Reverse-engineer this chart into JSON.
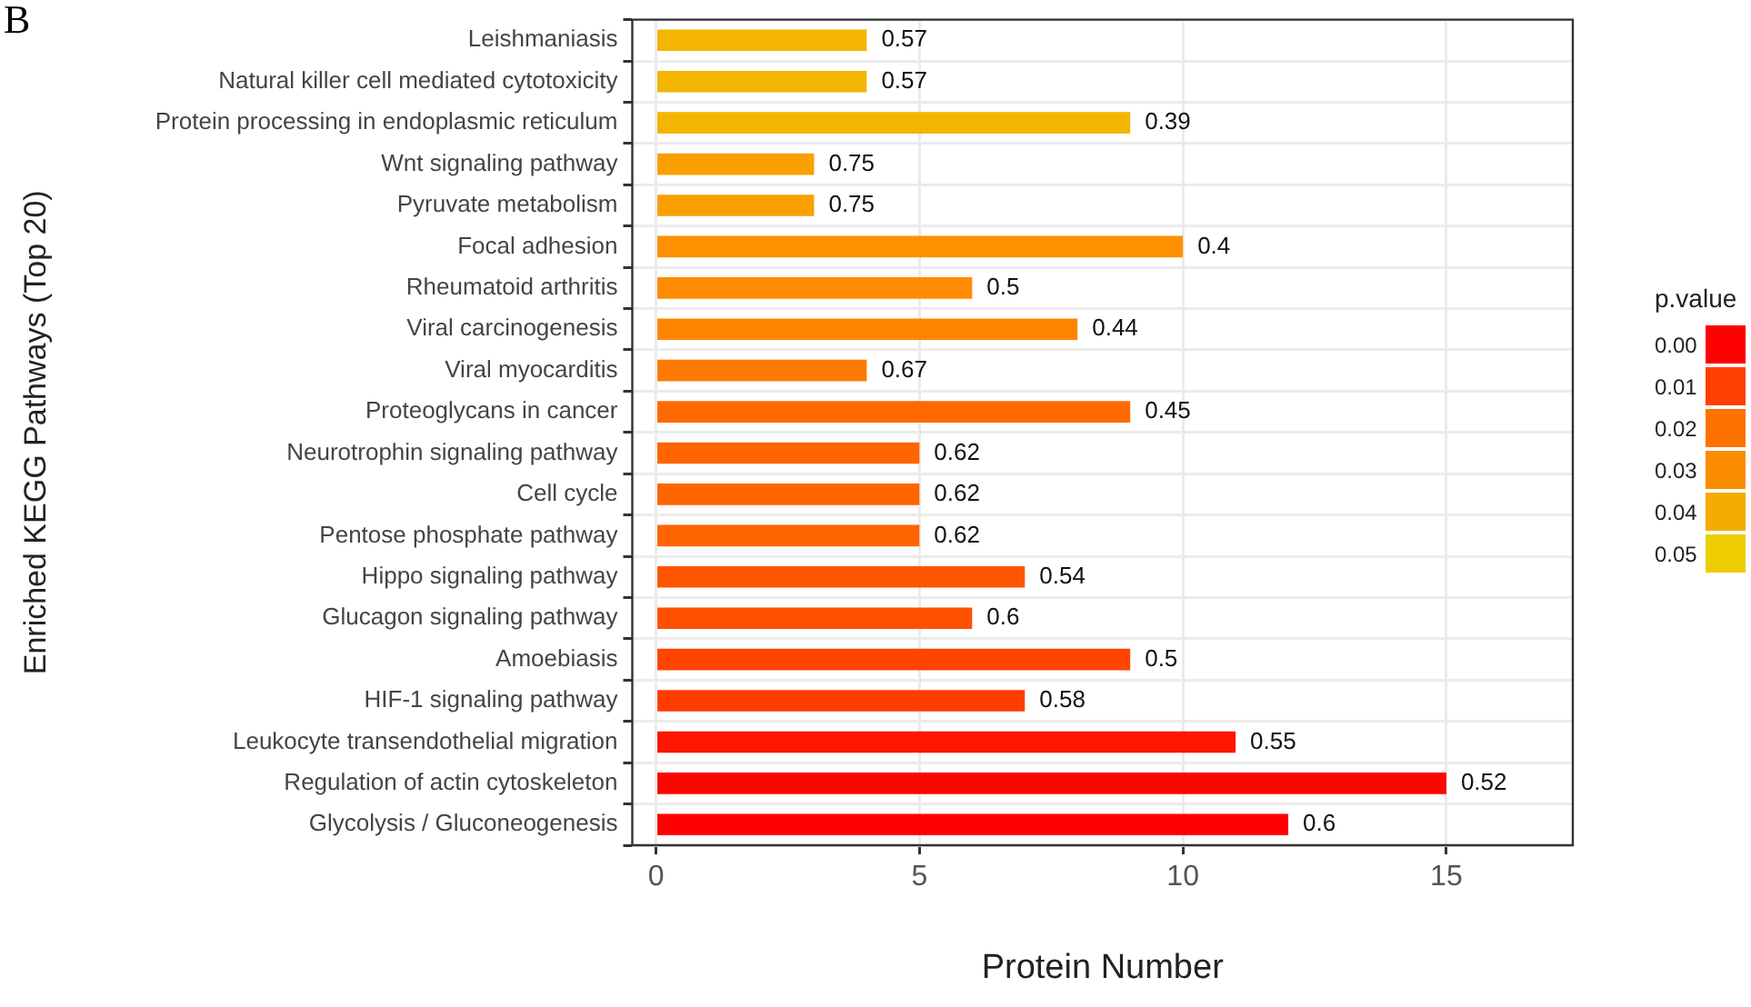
{
  "chart_data": {
    "type": "bar",
    "orientation": "horizontal",
    "xlabel": "Protein Number",
    "ylabel": "Enriched KEGG Pathways (Top 20)",
    "clabel": "p.value",
    "annotations": [
      "B",
      {
        "text": "0.57",
        "x": 4,
        "y": "Leishmaniasis"
      },
      {
        "text": "0.57",
        "x": 4,
        "y": "Natural killer cell mediated cytotoxicity"
      },
      {
        "text": "0.39",
        "x": 9,
        "y": "Protein processing in endoplasmic reticulum"
      },
      {
        "text": "0.75",
        "x": 3,
        "y": "Wnt signaling pathway"
      },
      {
        "text": "0.75",
        "x": 3,
        "y": "Pyruvate metabolism"
      },
      {
        "text": "0.4",
        "x": 10,
        "y": "Focal adhesion"
      },
      {
        "text": "0.5",
        "x": 6,
        "y": "Rheumatoid arthritis"
      },
      {
        "text": "0.44",
        "x": 8,
        "y": "Viral carcinogenesis"
      },
      {
        "text": "0.67",
        "x": 4,
        "y": "Viral myocarditis"
      },
      {
        "text": "0.45",
        "x": 9,
        "y": "Proteoglycans in cancer"
      },
      {
        "text": "0.62",
        "x": 5,
        "y": "Neurotrophin signaling pathway"
      },
      {
        "text": "0.62",
        "x": 5,
        "y": "Cell cycle"
      },
      {
        "text": "0.62",
        "x": 5,
        "y": "Pentose phosphate pathway"
      },
      {
        "text": "0.54",
        "x": 7,
        "y": "Hippo signaling pathway"
      },
      {
        "text": "0.6",
        "x": 6,
        "y": "Glucagon signaling pathway"
      },
      {
        "text": "0.5",
        "x": 9,
        "y": "Amoebiasis"
      },
      {
        "text": "0.58",
        "x": 7,
        "y": "HIF-1 signaling pathway"
      },
      {
        "text": "0.55",
        "x": 11,
        "y": "Leukocyte transendothelial migration"
      },
      {
        "text": "0.52",
        "x": 15,
        "y": "Regulation of actin cytoskeleton"
      },
      {
        "text": "0.6",
        "x": 12,
        "y": "Glycolysis / Gluconeogenesis"
      }
    ],
    "categories": [
      "Leishmaniasis",
      "Natural killer cell mediated cytotoxicity",
      "Protein processing in endoplasmic reticulum",
      "Wnt signaling pathway",
      "Pyruvate metabolism",
      "Focal adhesion",
      "Rheumatoid arthritis",
      "Viral carcinogenesis",
      "Viral myocarditis",
      "Proteoglycans in cancer",
      "Neurotrophin signaling pathway",
      "Cell cycle",
      "Pentose phosphate pathway",
      "Hippo signaling pathway",
      "Glucagon signaling pathway",
      "Amoebiasis",
      "HIF-1 signaling pathway",
      "Leukocyte transendothelial migration",
      "Regulation of actin cytoskeleton",
      "Glycolysis / Gluconeogenesis"
    ],
    "values": [
      4,
      4,
      9,
      3,
      3,
      10,
      6,
      8,
      4,
      9,
      5,
      5,
      5,
      7,
      6,
      9,
      7,
      11,
      15,
      12
    ],
    "colors": [
      "#f3b500",
      "#f3b500",
      "#f3b500",
      "#f9a000",
      "#f9a000",
      "#ff9000",
      "#ff8c00",
      "#ff8500",
      "#ff7a00",
      "#ff6a00",
      "#ff6500",
      "#ff6500",
      "#ff6500",
      "#ff5500",
      "#ff5000",
      "#ff4500",
      "#ff3d00",
      "#ff1500",
      "#ff0500",
      "#ff0000"
    ],
    "xlim": [
      -0.45,
      17.4
    ],
    "xticks": [
      0,
      5,
      10,
      15
    ],
    "cticks": [
      {
        "value": 0,
        "label": "0.00"
      },
      {
        "value": 0.01,
        "label": "0.01"
      },
      {
        "value": 0.02,
        "label": "0.02"
      },
      {
        "value": 0.03,
        "label": "0.03"
      },
      {
        "value": 0.04,
        "label": "0.04"
      },
      {
        "value": 0.05,
        "label": "0.05"
      }
    ],
    "grid": true,
    "legend": false
  }
}
